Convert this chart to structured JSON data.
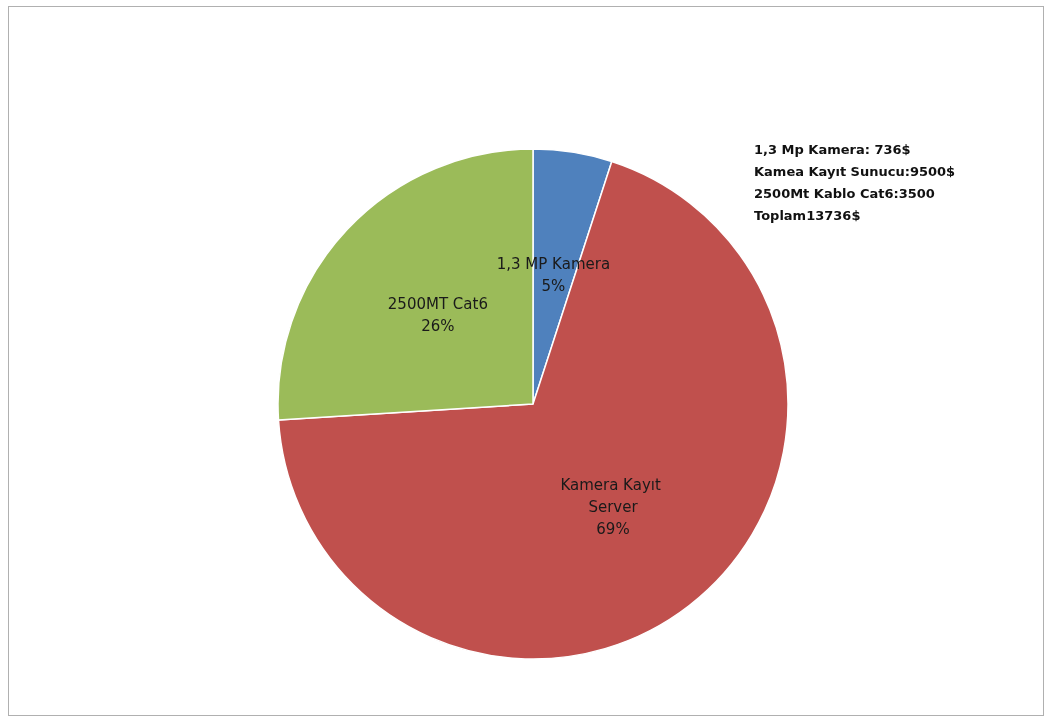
{
  "chart_data": {
    "type": "pie",
    "categories": [
      "1,3 MP Kamera",
      "Kamera Kayıt Server",
      "2500MT Cat6"
    ],
    "values": [
      5,
      69,
      26
    ],
    "value_labels": [
      "5%",
      "69%",
      "26%"
    ],
    "colors": [
      "#4f81bd",
      "#c0504d",
      "#9bbb59"
    ],
    "legend": false,
    "annotations": [
      "1,3 Mp Kamera: 736$",
      "Kamea Kayıt Sunucu:9500$",
      "2500Mt Kablo Cat6:3500",
      "Toplam13736$"
    ]
  }
}
